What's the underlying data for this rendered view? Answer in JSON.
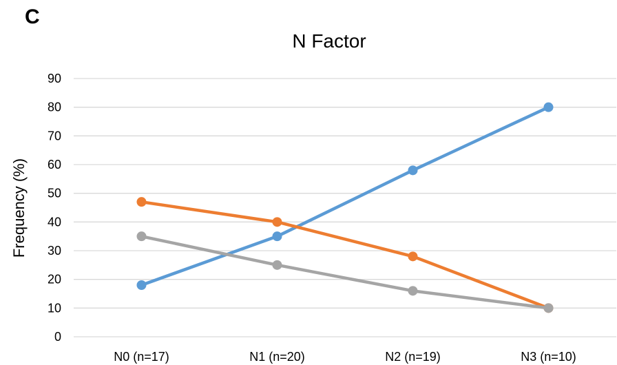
{
  "panel_label": "C",
  "chart_data": {
    "type": "line",
    "title": "N Factor",
    "xlabel": "",
    "ylabel": "Frequency (%)",
    "categories": [
      "N0 (n=17)",
      "N1 (n=20)",
      "N2 (n=19)",
      "N3 (n=10)"
    ],
    "ylim": [
      0,
      90
    ],
    "yticks": [
      0,
      10,
      20,
      30,
      40,
      50,
      60,
      70,
      80,
      90
    ],
    "grid": true,
    "series": [
      {
        "color": "#5B9BD5",
        "values": [
          18,
          35,
          58,
          80
        ]
      },
      {
        "color": "#ED7D31",
        "values": [
          47,
          40,
          28,
          10
        ]
      },
      {
        "color": "#A5A5A5",
        "values": [
          35,
          25,
          16,
          10
        ]
      }
    ]
  }
}
